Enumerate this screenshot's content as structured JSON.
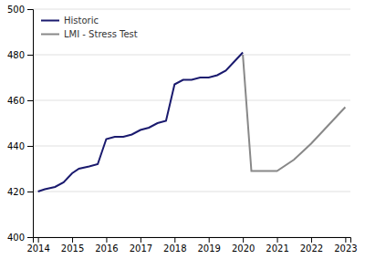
{
  "chart_data": {
    "type": "line",
    "series": [
      {
        "name": "Historic",
        "color": "#1a1a6e",
        "x": [
          2014,
          2014.2,
          2014.5,
          2014.75,
          2015,
          2015.2,
          2015.5,
          2015.75,
          2016,
          2016.25,
          2016.5,
          2016.75,
          2017,
          2017.25,
          2017.5,
          2017.75,
          2018,
          2018.25,
          2018.5,
          2018.75,
          2019,
          2019.25,
          2019.5,
          2019.75,
          2020
        ],
        "values": [
          420,
          421,
          422,
          424,
          428,
          430,
          431,
          432,
          443,
          444,
          444,
          445,
          447,
          448,
          450,
          451,
          467,
          469,
          469,
          470,
          470,
          471,
          473,
          477,
          481
        ]
      },
      {
        "name": "LMI - Stress Test",
        "color": "#888888",
        "x": [
          2020,
          2020.25,
          2020.5,
          2021,
          2021.5,
          2022,
          2022.5,
          2023
        ],
        "values": [
          480,
          429,
          429,
          429,
          434,
          441,
          449,
          457
        ]
      }
    ],
    "xlim": [
      2013.85,
      2023.15
    ],
    "xticks": [
      2014,
      2015,
      2016,
      2017,
      2018,
      2019,
      2020,
      2021,
      2022,
      2023
    ],
    "ylim": [
      400,
      500
    ],
    "yticks": [
      400,
      420,
      440,
      460,
      480,
      500
    ],
    "grid": true,
    "legend": "upper left"
  }
}
